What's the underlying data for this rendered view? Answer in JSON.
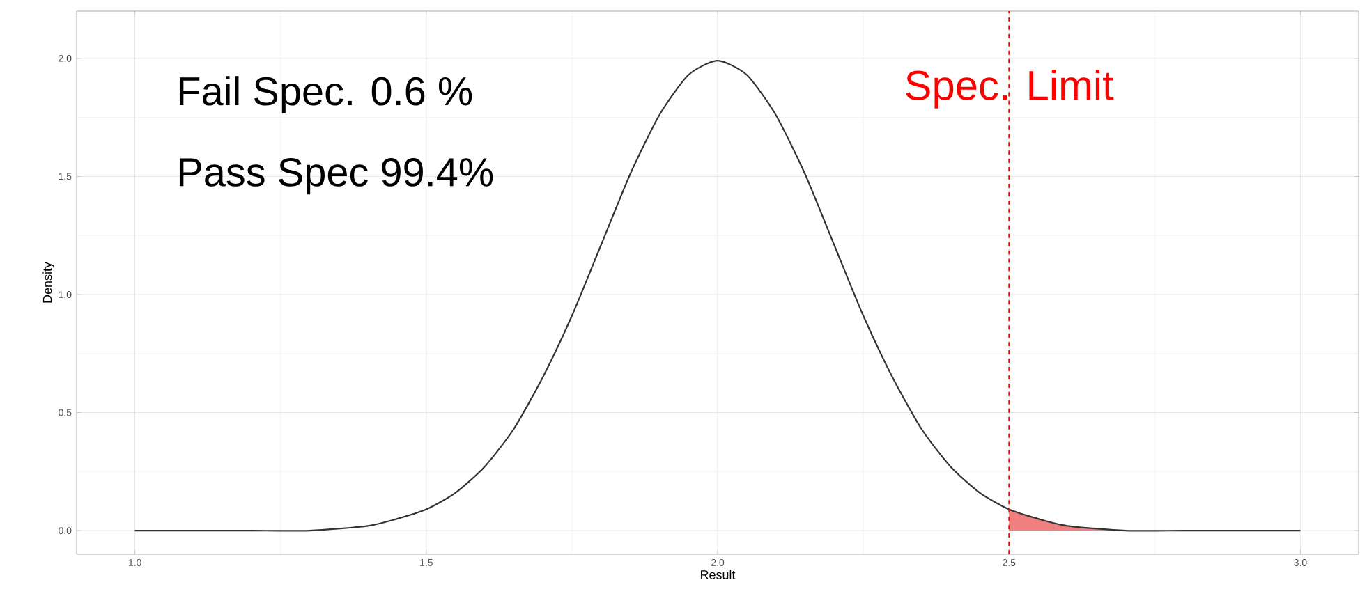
{
  "chart_data": {
    "type": "line",
    "xlabel": "Result",
    "ylabel": "Density",
    "series": [
      {
        "color": "#333333",
        "x": [
          1.0,
          1.1,
          1.2,
          1.3,
          1.4,
          1.45,
          1.5,
          1.55,
          1.6,
          1.65,
          1.7,
          1.75,
          1.8,
          1.85,
          1.9,
          1.95,
          2.0,
          2.05,
          2.1,
          2.15,
          2.2,
          2.25,
          2.3,
          2.35,
          2.4,
          2.45,
          2.5,
          2.55,
          2.6,
          2.7,
          2.8,
          2.9,
          3.0
        ],
        "values": [
          0,
          0,
          0,
          0,
          0.02,
          0.05,
          0.09,
          0.16,
          0.27,
          0.43,
          0.65,
          0.91,
          1.21,
          1.51,
          1.76,
          1.93,
          1.99,
          1.93,
          1.76,
          1.51,
          1.21,
          0.91,
          0.65,
          0.43,
          0.27,
          0.16,
          0.09,
          0.05,
          0.02,
          0,
          0,
          0,
          0
        ]
      },
      {
        "type": "area",
        "color": "#f08080",
        "x": [
          2.5,
          2.55,
          2.6,
          2.65,
          2.7,
          2.8
        ],
        "values": [
          0.09,
          0.05,
          0.02,
          0.01,
          0,
          0
        ]
      }
    ],
    "xlim": [
      0.9,
      3.1
    ],
    "ylim": [
      -0.1,
      2.2
    ],
    "xticks": [
      {
        "value": 1.0,
        "label": "1.0"
      },
      {
        "value": 1.5,
        "label": "1.5"
      },
      {
        "value": 2.0,
        "label": "2.0"
      },
      {
        "value": 2.5,
        "label": "2.5"
      },
      {
        "value": 3.0,
        "label": "3.0"
      }
    ],
    "yticks": [
      {
        "value": 0.0,
        "label": "0.0"
      },
      {
        "value": 0.5,
        "label": "0.5"
      },
      {
        "value": 1.0,
        "label": "1.0"
      },
      {
        "value": 1.5,
        "label": "1.5"
      },
      {
        "value": 2.0,
        "label": "2.0"
      }
    ],
    "ref_lines": [
      {
        "axis": "x",
        "value": 2.5,
        "label": "Spec. Limit",
        "color": "#ff0000",
        "line_style": "dashed"
      }
    ],
    "annotations": [
      "Fail Spec. 0.6 %",
      "Pass Spec 99.4%"
    ],
    "grid": true,
    "marker": "none",
    "line_style": "solid"
  }
}
